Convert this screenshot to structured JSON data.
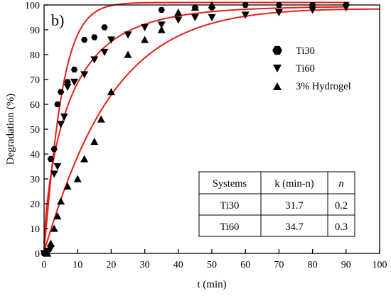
{
  "chart_data": {
    "type": "scatter",
    "panel_label": "b)",
    "xlabel": "t (min)",
    "ylabel": "Degradation (%)",
    "xlim": [
      0,
      100
    ],
    "ylim": [
      0,
      100
    ],
    "x_ticks": [
      0,
      10,
      20,
      30,
      40,
      50,
      60,
      70,
      80,
      90,
      100
    ],
    "y_ticks": [
      0,
      10,
      20,
      30,
      40,
      50,
      60,
      70,
      80,
      90,
      100
    ],
    "legend_position": "top-right",
    "fit_color": "#e32119",
    "series": [
      {
        "name": "Ti30",
        "marker": "hexagon",
        "x": [
          0,
          1,
          2,
          3,
          4,
          5,
          7,
          9,
          12,
          15,
          18,
          35,
          45,
          50,
          60,
          70,
          80,
          90
        ],
        "y": [
          0,
          1,
          38,
          42,
          60,
          65,
          69,
          74,
          86,
          87,
          91,
          98,
          99,
          99,
          100,
          100,
          100,
          100
        ],
        "fit": {
          "k": 31.7,
          "n": 0.2,
          "max": 101
        }
      },
      {
        "name": "Ti60",
        "marker": "triangle-down",
        "x": [
          0,
          1,
          2,
          3,
          4,
          5,
          6,
          7,
          9,
          12,
          15,
          18,
          20,
          25,
          30,
          35,
          40,
          45,
          50,
          60,
          70,
          80,
          90
        ],
        "y": [
          0,
          1,
          2,
          32,
          35,
          52,
          55,
          67,
          69,
          72,
          78,
          81,
          86,
          88,
          91,
          92,
          94,
          95,
          95,
          96,
          97,
          98,
          99
        ],
        "fit": {
          "k": 34.7,
          "n": 0.3,
          "max": 100
        }
      },
      {
        "name": "3% Hydrogel",
        "marker": "triangle-up",
        "x": [
          1,
          2,
          3,
          4,
          5,
          7,
          10,
          12,
          15,
          17,
          20,
          25,
          30,
          35,
          40,
          45,
          50
        ],
        "y": [
          0,
          4,
          10,
          15,
          21,
          27,
          30,
          38,
          45,
          54,
          65,
          80,
          86,
          90,
          97,
          99,
          100
        ]
      }
    ],
    "table": {
      "headers": [
        "Systems",
        "k (min-n)",
        "n"
      ],
      "rows": [
        [
          "Ti30",
          "31.7",
          "0.2"
        ],
        [
          "Ti60",
          "34.7",
          "0.3"
        ]
      ]
    }
  }
}
